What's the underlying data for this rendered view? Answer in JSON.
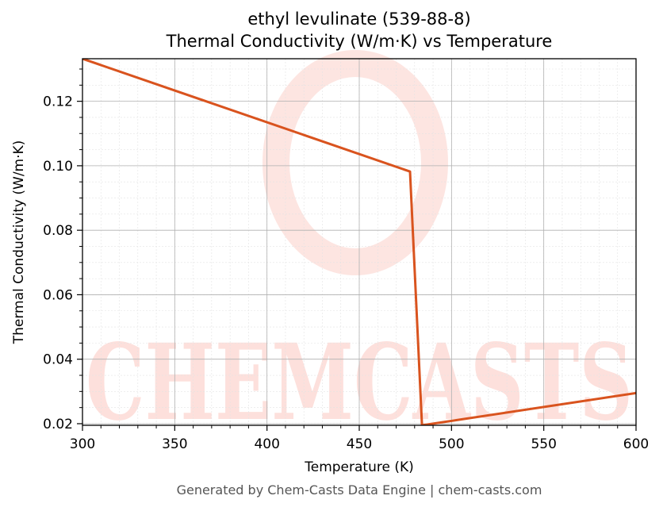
{
  "chart_data": {
    "type": "line",
    "title": "ethyl levulinate (539-88-8)",
    "subtitle": "Thermal Conductivity (W/m·K) vs Temperature",
    "xlabel": "Temperature (K)",
    "ylabel": "Thermal Conductivity (W/m·K)",
    "xlim": [
      300,
      600
    ],
    "ylim": [
      0.0195,
      0.1332
    ],
    "xticks": [
      300,
      350,
      400,
      450,
      500,
      550,
      600
    ],
    "yticks": [
      0.02,
      0.04,
      0.06,
      0.08,
      0.1,
      0.12
    ],
    "ytick_labels": [
      "0.02",
      "0.04",
      "0.06",
      "0.08",
      "0.10",
      "0.12"
    ],
    "grid": true,
    "series": [
      {
        "color": "#d9531e",
        "x": [
          300,
          477.5,
          484,
          600
        ],
        "y": [
          0.1332,
          0.0982,
          0.0195,
          0.0295
        ]
      }
    ]
  },
  "watermark": {
    "text": "CHEMCASTS",
    "color": "#fde0dc"
  },
  "footer": "Generated by Chem-Casts Data Engine | chem-casts.com"
}
